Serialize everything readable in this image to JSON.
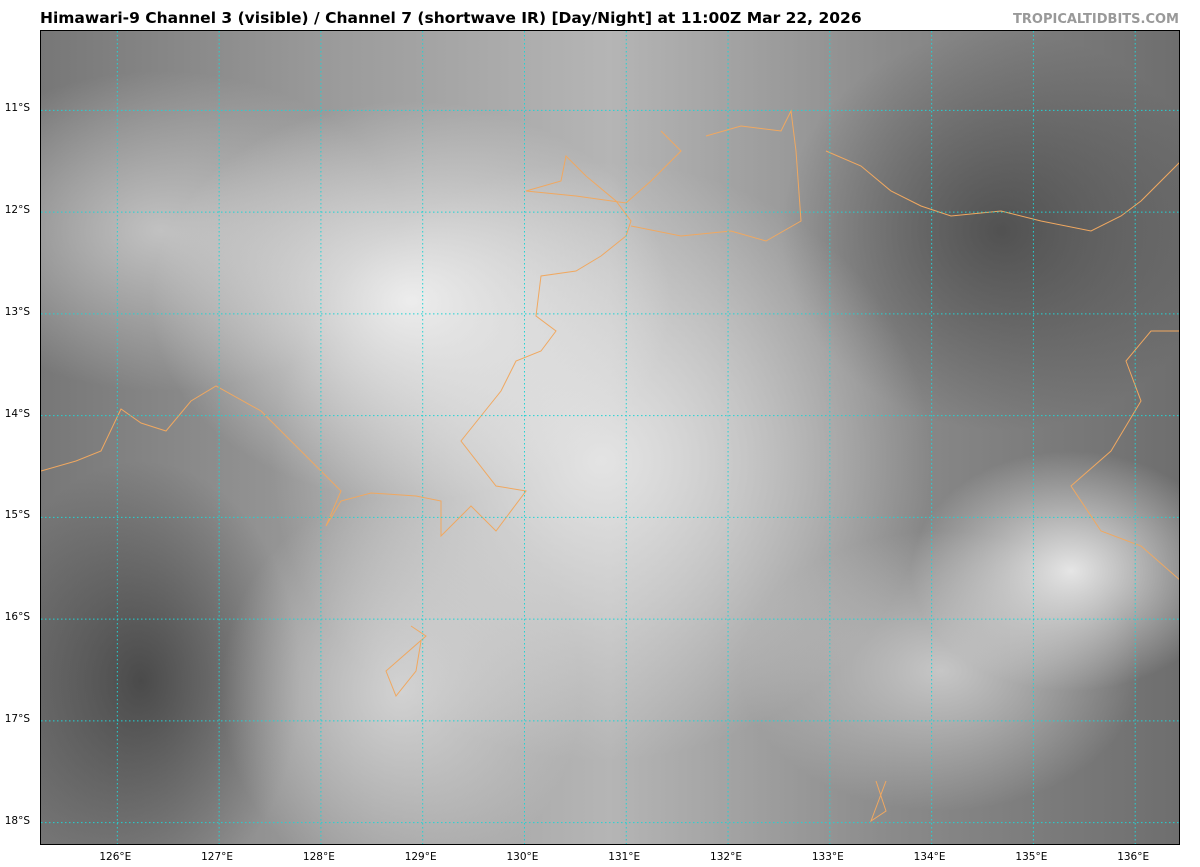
{
  "header": {
    "title": "Himawari-9 Channel 3 (visible) / Channel 7 (shortwave IR) [Day/Night] at 11:00Z Mar 22, 2026",
    "brand": "TROPICALTIDBITS.COM"
  },
  "map": {
    "lon_range": [
      125.25,
      136.45
    ],
    "lat_range": [
      -10.22,
      -18.23
    ],
    "grid_color": "#22d3d3",
    "coast_color": "#f0a860",
    "lon_ticks": [
      {
        "v": 126,
        "label": "126°E"
      },
      {
        "v": 127,
        "label": "127°E"
      },
      {
        "v": 128,
        "label": "128°E"
      },
      {
        "v": 129,
        "label": "129°E"
      },
      {
        "v": 130,
        "label": "130°E"
      },
      {
        "v": 131,
        "label": "131°E"
      },
      {
        "v": 132,
        "label": "132°E"
      },
      {
        "v": 133,
        "label": "133°E"
      },
      {
        "v": 134,
        "label": "134°E"
      },
      {
        "v": 135,
        "label": "135°E"
      },
      {
        "v": 136,
        "label": "136°E"
      }
    ],
    "lat_ticks": [
      {
        "v": -11,
        "label": "11°S"
      },
      {
        "v": -12,
        "label": "12°S"
      },
      {
        "v": -13,
        "label": "13°S"
      },
      {
        "v": -14,
        "label": "14°S"
      },
      {
        "v": -15,
        "label": "15°S"
      },
      {
        "v": -16,
        "label": "16°S"
      },
      {
        "v": -17,
        "label": "17°S"
      },
      {
        "v": -18,
        "label": "18°S"
      }
    ]
  }
}
